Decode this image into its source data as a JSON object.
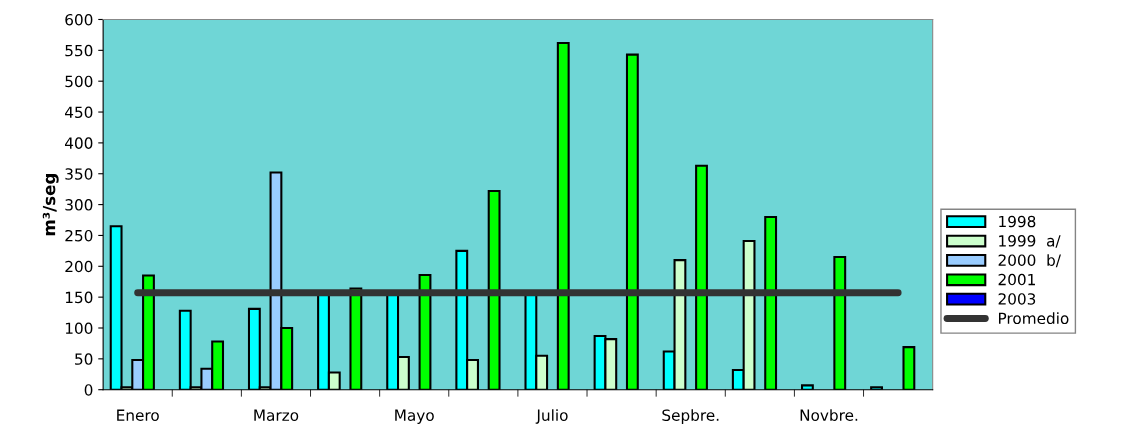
{
  "chart_data": {
    "type": "bar",
    "ylabel": "m³/seg",
    "categories": [
      "Enero",
      null,
      "Marzo",
      null,
      "Mayo",
      null,
      "Julio",
      null,
      "Sepbre.",
      null,
      "Novbre.",
      null
    ],
    "series": [
      {
        "name": "1998",
        "color": "#00ffff",
        "values": [
          265,
          128,
          131,
          155,
          155,
          225,
          155,
          87,
          62,
          32,
          7,
          4
        ]
      },
      {
        "name": "1999  a/",
        "color": "#ccffcc",
        "values": [
          4,
          4,
          4,
          28,
          53,
          48,
          55,
          82,
          210,
          241,
          null,
          null
        ]
      },
      {
        "name": "2000  b/",
        "color": "#99ccff",
        "values": [
          48,
          34,
          352,
          null,
          null,
          null,
          null,
          null,
          null,
          null,
          null,
          null
        ]
      },
      {
        "name": "2001",
        "color": "#00ff00",
        "values": [
          185,
          78,
          100,
          164,
          186,
          322,
          562,
          543,
          363,
          280,
          215,
          69
        ]
      },
      {
        "name": "2003",
        "color": "#0000ff",
        "values": [
          null,
          null,
          null,
          null,
          null,
          null,
          null,
          null,
          null,
          null,
          null,
          null
        ]
      },
      {
        "name": "Promedio",
        "type": "line",
        "color": "#333333",
        "values": [
          157,
          157,
          157,
          157,
          157,
          157,
          157,
          157,
          157,
          157,
          157,
          157
        ]
      }
    ],
    "ylim": [
      0,
      600
    ],
    "yticks": [
      0,
      50,
      100,
      150,
      200,
      250,
      300,
      350,
      400,
      450,
      500,
      550,
      600
    ],
    "grid": false,
    "legend": "right"
  }
}
